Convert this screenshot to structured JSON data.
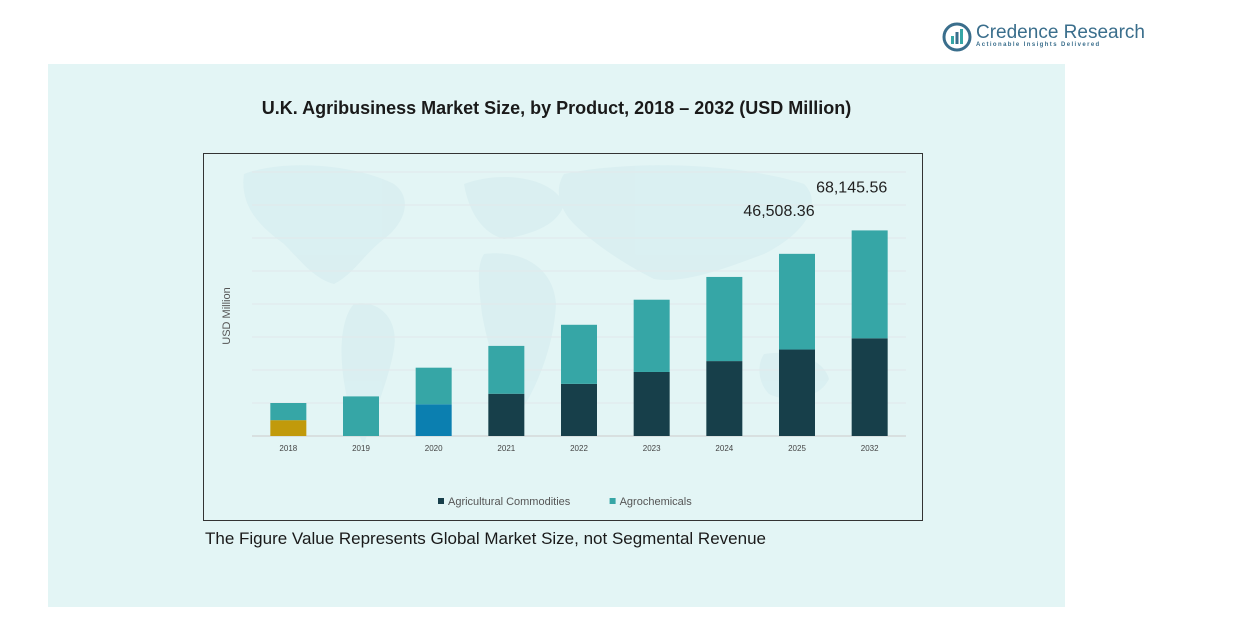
{
  "logo": {
    "name": "Credence Research",
    "tagline": "Actionable Insights Delivered"
  },
  "footnote": "The Figure Value Represents Global Market Size, not Segmental Revenue",
  "colors": {
    "agricultural_commodities": "#173f4a",
    "agrochemicals": "#36a6a6",
    "highlight_2018": "#c19a0b",
    "highlight_2020": "#0b7fb0"
  },
  "chart_data": {
    "type": "bar",
    "stacked": true,
    "title": "U.K. Agribusiness Market Size, by Product, 2018 – 2032 (USD Million)",
    "ylabel": "USD Million",
    "xlabel": "",
    "categories": [
      "2018",
      "2019",
      "2020",
      "2021",
      "2022",
      "2023",
      "2024",
      "2025",
      "2032"
    ],
    "series": [
      {
        "name": "Agricultural Commodities",
        "values": [
          4800,
          0,
          9600,
          12800,
          15800,
          19400,
          22700,
          26200,
          29600
        ]
      },
      {
        "name": "Agrochemicals",
        "values": [
          5200,
          12000,
          11100,
          14500,
          17900,
          21900,
          25500,
          29000,
          32700
        ]
      }
    ],
    "data_labels": [
      {
        "category": "2025",
        "text": "46,508.36"
      },
      {
        "category": "2032",
        "text": "68,145.56"
      }
    ],
    "ylim": [
      0,
      80000
    ],
    "grid": true,
    "legend": "bottom"
  }
}
